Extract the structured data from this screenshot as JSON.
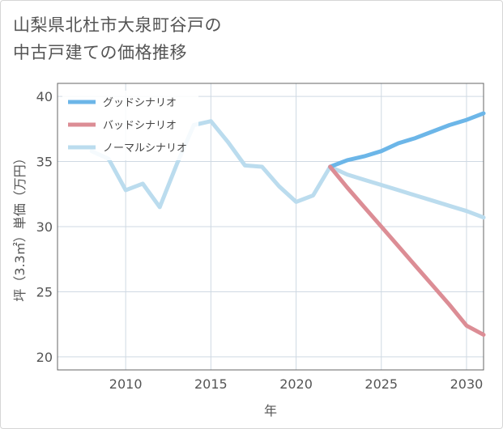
{
  "title": "山梨県北杜市大泉町谷戸の\n中古戸建ての価格推移",
  "chart_data": {
    "type": "line",
    "xlabel": "年",
    "ylabel": "坪（3.3㎡）単価（万円）",
    "xlim": [
      2006,
      2031
    ],
    "ylim": [
      19,
      41
    ],
    "x_ticks": [
      2010,
      2015,
      2020,
      2025,
      2030
    ],
    "y_ticks": [
      20,
      25,
      30,
      35,
      40
    ],
    "grid": true,
    "legend_position": "top-left",
    "series": [
      {
        "name": "グッドシナリオ",
        "color": "#6cb6e8",
        "x": [
          2022,
          2023,
          2024,
          2025,
          2026,
          2027,
          2028,
          2029,
          2030,
          2031
        ],
        "y": [
          34.6,
          35.1,
          35.4,
          35.8,
          36.4,
          36.8,
          37.3,
          37.8,
          38.2,
          38.7
        ]
      },
      {
        "name": "バッドシナリオ",
        "color": "#dc8d95",
        "x": [
          2022,
          2023,
          2024,
          2025,
          2026,
          2027,
          2028,
          2029,
          2030,
          2031
        ],
        "y": [
          34.6,
          33.0,
          31.5,
          30.0,
          28.5,
          27.0,
          25.5,
          24.0,
          22.4,
          21.7
        ]
      },
      {
        "name": "ノーマルシナリオ",
        "color": "#bbdcee",
        "x": [
          2008,
          2009,
          2010,
          2011,
          2012,
          2013,
          2014,
          2015,
          2016,
          2017,
          2018,
          2019,
          2020,
          2021,
          2022,
          2023,
          2024,
          2025,
          2026,
          2027,
          2028,
          2029,
          2030,
          2031
        ],
        "y": [
          35.8,
          35.2,
          32.8,
          33.3,
          31.5,
          34.8,
          37.8,
          38.1,
          36.5,
          34.7,
          34.6,
          33.1,
          31.9,
          32.4,
          34.6,
          34.0,
          33.6,
          33.2,
          32.8,
          32.4,
          32.0,
          31.6,
          31.2,
          30.7
        ]
      }
    ]
  }
}
